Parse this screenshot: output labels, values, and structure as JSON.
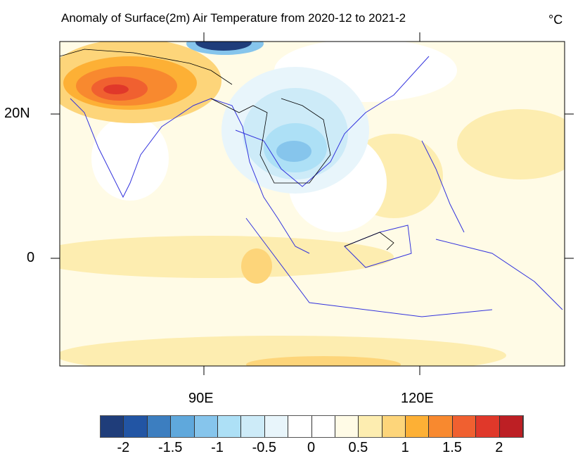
{
  "title": "Anomaly of Surface(2m) Air Temperature from 2020-12 to 2021-2",
  "units": "°C",
  "lat_labels": [
    "20N",
    "0"
  ],
  "lon_labels": [
    "90E",
    "120E"
  ],
  "colorbar": {
    "colors": [
      "#1f3d7a",
      "#2255a4",
      "#3c7ec0",
      "#5fa8dc",
      "#86c5ec",
      "#ade0f6",
      "#cdebf8",
      "#e8f5fb",
      "#ffffff",
      "#ffffff",
      "#fffbe6",
      "#fdedb0",
      "#fdd57a",
      "#fdb035",
      "#f8892f",
      "#f06030",
      "#e0382a",
      "#bd1f24"
    ],
    "labels": [
      "-2",
      "-1.5",
      "-1",
      "-0.5",
      "0",
      "0.5",
      "1",
      "1.5",
      "2"
    ]
  }
}
